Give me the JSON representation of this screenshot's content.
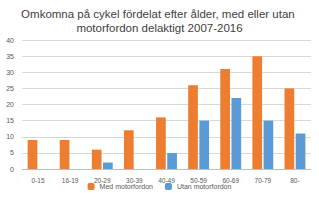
{
  "chart_data": {
    "type": "bar",
    "title": "Omkomna på cykel fördelat efter ålder, med eller utan motorfordon delaktigt 2007-2016",
    "categories": [
      "0-15",
      "16-19",
      "20-29",
      "30-39",
      "40-49",
      "50-59",
      "60-69",
      "70-79",
      "80-"
    ],
    "series": [
      {
        "name": "Med motorfordon",
        "color": "#ed7d31",
        "values": [
          9,
          9,
          6,
          12,
          16,
          26,
          31,
          35,
          25
        ]
      },
      {
        "name": "Utan motorfordon",
        "color": "#5b9bd5",
        "values": [
          0,
          0,
          2,
          0,
          5,
          15,
          22,
          15,
          11
        ]
      }
    ],
    "ylim": [
      0,
      40
    ],
    "yticks": [
      0,
      5,
      10,
      15,
      20,
      25,
      30,
      35,
      40
    ],
    "grid": true,
    "legend": "bottom"
  }
}
